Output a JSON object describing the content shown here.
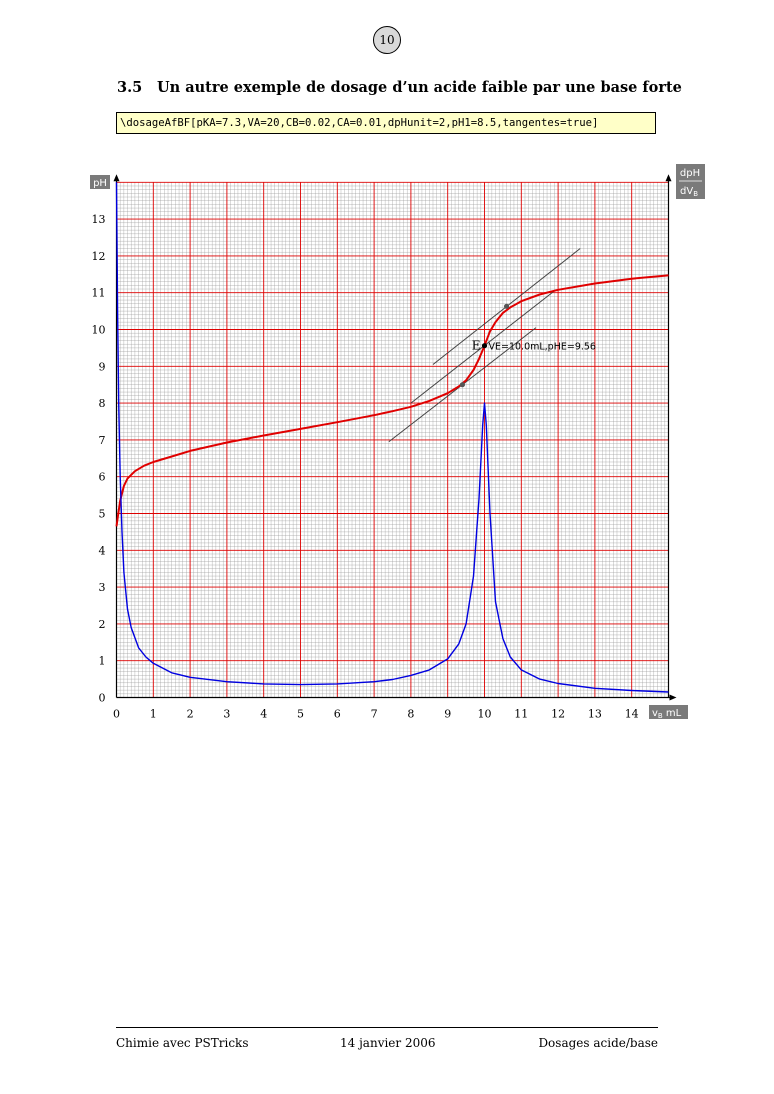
{
  "page_number": "10",
  "section": {
    "number": "3.5",
    "title": "Un autre exemple de dosage d’un acide faible par une base forte"
  },
  "code": "\\dosageAfBF[pKA=7.3,VA=20,CB=0.02,CA=0.01,dpHunit=2,pH1=8.5,tangentes=true]",
  "footer": {
    "left": "Chimie avec PSTricks",
    "center": "14 janvier 2006",
    "right": "Dosages acide/base"
  },
  "chart_data": {
    "type": "line",
    "title": "",
    "ylabel_left": "pH",
    "ylabel_right": [
      "dpH",
      "dV",
      "B"
    ],
    "xlabel": [
      "v",
      "B",
      " mL"
    ],
    "xlim": [
      0,
      15
    ],
    "ylim": [
      0,
      14
    ],
    "xticks": [
      "0",
      "1",
      "2",
      "3",
      "4",
      "5",
      "6",
      "7",
      "8",
      "9",
      "10",
      "11",
      "12",
      "13",
      "14"
    ],
    "yticks": [
      "0",
      "1",
      "2",
      "3",
      "4",
      "5",
      "6",
      "7",
      "8",
      "9",
      "10",
      "11",
      "12",
      "13"
    ],
    "grid": true,
    "colors": {
      "ph_curve": "#e00000",
      "derivative_curve": "#0000e0",
      "grid_major": "#dd0000",
      "grid_minor": "#999999",
      "tangents": "#444444"
    },
    "series": [
      {
        "name": "pH",
        "x": [
          0,
          0.05,
          0.1,
          0.2,
          0.3,
          0.5,
          0.75,
          1,
          1.5,
          2,
          3,
          4,
          5,
          6,
          7,
          7.5,
          8,
          8.5,
          9,
          9.3,
          9.5,
          9.7,
          9.85,
          10,
          10.15,
          10.3,
          10.5,
          10.7,
          11,
          11.5,
          12,
          13,
          14,
          15
        ],
        "y": [
          4.65,
          5.0,
          5.35,
          5.75,
          5.95,
          6.15,
          6.3,
          6.4,
          6.55,
          6.7,
          6.93,
          7.12,
          7.3,
          7.48,
          7.67,
          7.78,
          7.9,
          8.06,
          8.27,
          8.45,
          8.62,
          8.9,
          9.2,
          9.56,
          9.95,
          10.2,
          10.45,
          10.6,
          10.77,
          10.95,
          11.08,
          11.25,
          11.38,
          11.47
        ]
      },
      {
        "name": "dpH/dVB",
        "x": [
          0,
          0.03,
          0.06,
          0.1,
          0.15,
          0.2,
          0.3,
          0.4,
          0.6,
          0.8,
          1,
          1.5,
          2,
          3,
          4,
          5,
          6,
          7,
          7.5,
          8,
          8.5,
          9,
          9.3,
          9.5,
          9.7,
          9.85,
          9.95,
          10,
          10.05,
          10.15,
          10.3,
          10.5,
          10.7,
          11,
          11.5,
          12,
          13,
          14,
          15
        ],
        "y": [
          14,
          10.5,
          8.0,
          6.0,
          4.5,
          3.4,
          2.4,
          1.9,
          1.35,
          1.1,
          0.93,
          0.67,
          0.55,
          0.43,
          0.37,
          0.35,
          0.37,
          0.43,
          0.49,
          0.6,
          0.75,
          1.05,
          1.45,
          2.0,
          3.3,
          5.4,
          7.4,
          8.0,
          7.4,
          5.0,
          2.6,
          1.6,
          1.1,
          0.75,
          0.5,
          0.38,
          0.25,
          0.19,
          0.15
        ]
      }
    ],
    "tangents": [
      {
        "from": [
          7.4,
          6.95
        ],
        "to": [
          11.4,
          10.05
        ]
      },
      {
        "from": [
          8.0,
          8.0
        ],
        "to": [
          11.9,
          11.05
        ]
      },
      {
        "from": [
          8.6,
          9.05
        ],
        "to": [
          12.6,
          12.2
        ]
      }
    ],
    "tangent_points": [
      [
        9.4,
        8.5
      ],
      [
        10.6,
        10.63
      ]
    ],
    "equivalence": {
      "x": 10.0,
      "y": 9.56,
      "marker": "E",
      "label": "VE=10.0mL,pHE=9.56"
    }
  }
}
